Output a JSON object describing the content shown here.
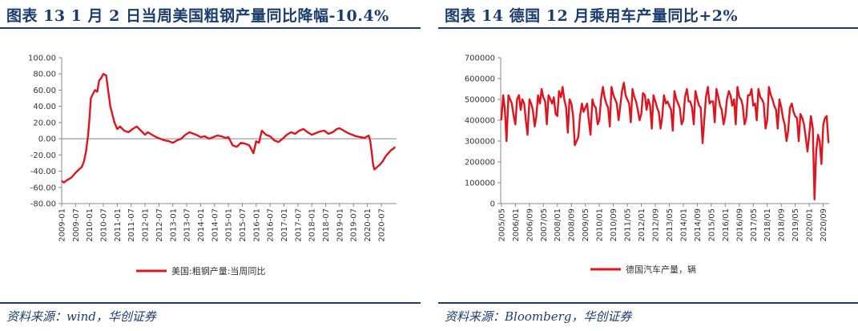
{
  "left": {
    "title": "图表 13   1 月 2 日当周美国粗钢产量同比降幅-10.4%",
    "source": "资料来源：wind，华创证券"
  },
  "right": {
    "title": "图表 14   德国 12 月乘用车产量同比+2%",
    "source": "资料来源：Bloomberg，华创证券"
  },
  "chart_data": [
    {
      "type": "line",
      "ylim": [
        -80,
        100
      ],
      "yticks": [
        -80,
        -60,
        -40,
        -20,
        0,
        20,
        40,
        60,
        80,
        100
      ],
      "ytick_labels": [
        "-80.00",
        "-60.00",
        "-40.00",
        "-20.00",
        "0.00",
        "20.00",
        "40.00",
        "60.00",
        "80.00",
        "100.00"
      ],
      "xticks": [
        "2009-01",
        "2009-07",
        "2010-01",
        "2010-07",
        "2011-01",
        "2011-07",
        "2012-01",
        "2012-07",
        "2013-01",
        "2013-07",
        "2014-01",
        "2014-07",
        "2015-01",
        "2015-07",
        "2016-01",
        "2016-07",
        "2017-01",
        "2017-07",
        "2018-01",
        "2018-07",
        "2019-01",
        "2019-07",
        "2020-01",
        "2020-07"
      ],
      "legend": "美国:粗钢产量:当周同比",
      "color": "#e0141e",
      "series": [
        {
          "name": "美国:粗钢产量:当周同比",
          "x": [
            2009.0,
            2009.08,
            2009.2,
            2009.35,
            2009.5,
            2009.62,
            2009.72,
            2009.8,
            2009.88,
            2009.95,
            2010.0,
            2010.05,
            2010.12,
            2010.2,
            2010.28,
            2010.35,
            2010.42,
            2010.5,
            2010.6,
            2010.75,
            2010.9,
            2011.0,
            2011.1,
            2011.25,
            2011.4,
            2011.55,
            2011.7,
            2011.85,
            2012.0,
            2012.1,
            2012.25,
            2012.4,
            2012.55,
            2012.7,
            2012.85,
            2013.0,
            2013.15,
            2013.3,
            2013.45,
            2013.6,
            2013.75,
            2013.9,
            2014.0,
            2014.15,
            2014.3,
            2014.45,
            2014.6,
            2014.75,
            2014.9,
            2015.0,
            2015.15,
            2015.3,
            2015.45,
            2015.6,
            2015.75,
            2015.9,
            2016.0,
            2016.1,
            2016.2,
            2016.35,
            2016.5,
            2016.65,
            2016.8,
            2016.95,
            2017.1,
            2017.25,
            2017.4,
            2017.55,
            2017.7,
            2017.85,
            2018.0,
            2018.15,
            2018.3,
            2018.45,
            2018.6,
            2018.75,
            2018.9,
            2019.0,
            2019.15,
            2019.3,
            2019.45,
            2019.6,
            2019.75,
            2019.9,
            2020.0,
            2020.05,
            2020.1,
            2020.15,
            2020.2,
            2020.25,
            2020.35,
            2020.45,
            2020.55,
            2020.65,
            2020.75,
            2020.85,
            2020.95,
            2021.0
          ],
          "y": [
            -52,
            -54,
            -51,
            -48,
            -42,
            -38,
            -35,
            -28,
            -15,
            5,
            25,
            50,
            55,
            60,
            58,
            72,
            75,
            80,
            78,
            40,
            20,
            12,
            15,
            10,
            8,
            12,
            15,
            10,
            5,
            8,
            5,
            2,
            0,
            -2,
            -3,
            -5,
            -2,
            0,
            5,
            8,
            6,
            4,
            2,
            3,
            0,
            2,
            4,
            3,
            1,
            2,
            -8,
            -10,
            -5,
            -6,
            -8,
            -18,
            -3,
            -5,
            10,
            5,
            3,
            -2,
            -4,
            0,
            5,
            8,
            6,
            10,
            12,
            8,
            5,
            7,
            9,
            10,
            6,
            8,
            12,
            13,
            10,
            7,
            5,
            3,
            2,
            1,
            3,
            4,
            -2,
            -15,
            -30,
            -38,
            -35,
            -32,
            -28,
            -22,
            -18,
            -14,
            -12,
            -10
          ]
        }
      ]
    },
    {
      "type": "line",
      "ylim": [
        0,
        700000
      ],
      "yticks": [
        0,
        100000,
        200000,
        300000,
        400000,
        500000,
        600000,
        700000
      ],
      "ytick_labels": [
        "0",
        "100000",
        "200000",
        "300000",
        "400000",
        "500000",
        "600000",
        "700000"
      ],
      "xticks": [
        "2005/05",
        "2006/01",
        "2006/09",
        "2007/05",
        "2008/01",
        "2008/09",
        "2009/05",
        "2010/01",
        "2010/09",
        "2011/05",
        "2012/01",
        "2012/09",
        "2013/05",
        "2014/01",
        "2014/09",
        "2015/05",
        "2016/01",
        "2016/09",
        "2017/05",
        "2018/01",
        "2018/09",
        "2019/05",
        "2020/01",
        "2020/09"
      ],
      "legend": "德国汽车产量，辆",
      "color": "#e0141e",
      "series": [
        {
          "name": "德国汽车产量，辆",
          "x": [
            2005.33,
            2005.42,
            2005.5,
            2005.58,
            2005.67,
            2005.75,
            2005.83,
            2005.92,
            2006.0,
            2006.08,
            2006.17,
            2006.25,
            2006.33,
            2006.42,
            2006.5,
            2006.58,
            2006.67,
            2006.75,
            2006.83,
            2006.92,
            2007.0,
            2007.08,
            2007.17,
            2007.25,
            2007.33,
            2007.42,
            2007.5,
            2007.58,
            2007.67,
            2007.75,
            2007.83,
            2007.92,
            2008.0,
            2008.08,
            2008.17,
            2008.25,
            2008.33,
            2008.42,
            2008.5,
            2008.58,
            2008.67,
            2008.75,
            2008.83,
            2008.92,
            2009.0,
            2009.08,
            2009.17,
            2009.25,
            2009.33,
            2009.42,
            2009.5,
            2009.58,
            2009.67,
            2009.75,
            2009.83,
            2009.92,
            2010.0,
            2010.08,
            2010.17,
            2010.25,
            2010.33,
            2010.42,
            2010.5,
            2010.58,
            2010.67,
            2010.75,
            2010.83,
            2010.92,
            2011.0,
            2011.08,
            2011.17,
            2011.25,
            2011.33,
            2011.42,
            2011.5,
            2011.58,
            2011.67,
            2011.75,
            2011.83,
            2011.92,
            2012.0,
            2012.08,
            2012.17,
            2012.25,
            2012.33,
            2012.42,
            2012.5,
            2012.58,
            2012.67,
            2012.75,
            2012.83,
            2012.92,
            2013.0,
            2013.08,
            2013.17,
            2013.25,
            2013.33,
            2013.42,
            2013.5,
            2013.58,
            2013.67,
            2013.75,
            2013.83,
            2013.92,
            2014.0,
            2014.08,
            2014.17,
            2014.25,
            2014.33,
            2014.42,
            2014.5,
            2014.58,
            2014.67,
            2014.75,
            2014.83,
            2014.92,
            2015.0,
            2015.08,
            2015.17,
            2015.25,
            2015.33,
            2015.42,
            2015.5,
            2015.58,
            2015.67,
            2015.75,
            2015.83,
            2015.92,
            2016.0,
            2016.08,
            2016.17,
            2016.25,
            2016.33,
            2016.42,
            2016.5,
            2016.58,
            2016.67,
            2016.75,
            2016.83,
            2016.92,
            2017.0,
            2017.08,
            2017.17,
            2017.25,
            2017.33,
            2017.42,
            2017.5,
            2017.58,
            2017.67,
            2017.75,
            2017.83,
            2017.92,
            2018.0,
            2018.08,
            2018.17,
            2018.25,
            2018.33,
            2018.42,
            2018.5,
            2018.58,
            2018.67,
            2018.75,
            2018.83,
            2018.92,
            2019.0,
            2019.08,
            2019.17,
            2019.25,
            2019.33,
            2019.42,
            2019.5,
            2019.58,
            2019.67,
            2019.75,
            2019.83,
            2019.92,
            2020.0,
            2020.08,
            2020.17,
            2020.25,
            2020.33,
            2020.42,
            2020.5,
            2020.58,
            2020.67,
            2020.75,
            2020.83,
            2020.92
          ],
          "y": [
            400000,
            520000,
            450000,
            300000,
            520000,
            500000,
            480000,
            420000,
            380000,
            500000,
            520000,
            450000,
            500000,
            480000,
            400000,
            330000,
            500000,
            480000,
            450000,
            370000,
            420000,
            520000,
            480000,
            550000,
            510000,
            490000,
            380000,
            520000,
            500000,
            480000,
            510000,
            430000,
            420000,
            540000,
            510000,
            560000,
            500000,
            460000,
            340000,
            500000,
            480000,
            420000,
            280000,
            300000,
            320000,
            420000,
            480000,
            440000,
            460000,
            480000,
            400000,
            330000,
            500000,
            470000,
            460000,
            380000,
            400000,
            500000,
            560000,
            510000,
            480000,
            460000,
            370000,
            560000,
            520000,
            500000,
            480000,
            400000,
            470000,
            540000,
            580000,
            520000,
            500000,
            480000,
            390000,
            550000,
            510000,
            490000,
            450000,
            400000,
            430000,
            530000,
            520000,
            450000,
            500000,
            470000,
            360000,
            520000,
            490000,
            460000,
            440000,
            360000,
            420000,
            520000,
            480000,
            490000,
            470000,
            450000,
            350000,
            540000,
            500000,
            480000,
            460000,
            380000,
            400000,
            510000,
            550000,
            490000,
            490000,
            460000,
            380000,
            540000,
            500000,
            470000,
            460000,
            290000,
            400000,
            510000,
            560000,
            480000,
            490000,
            490000,
            390000,
            550000,
            510000,
            470000,
            450000,
            380000,
            420000,
            500000,
            540000,
            520000,
            470000,
            500000,
            380000,
            560000,
            510000,
            500000,
            470000,
            380000,
            410000,
            520000,
            520000,
            550000,
            470000,
            480000,
            400000,
            550000,
            510000,
            500000,
            480000,
            360000,
            400000,
            560000,
            520000,
            500000,
            470000,
            450000,
            360000,
            500000,
            460000,
            410000,
            380000,
            300000,
            350000,
            460000,
            480000,
            440000,
            420000,
            410000,
            300000,
            430000,
            410000,
            380000,
            320000,
            250000,
            330000,
            420000,
            360000,
            20000,
            250000,
            330000,
            300000,
            190000,
            380000,
            410000,
            420000,
            290000
          ]
        }
      ]
    }
  ]
}
